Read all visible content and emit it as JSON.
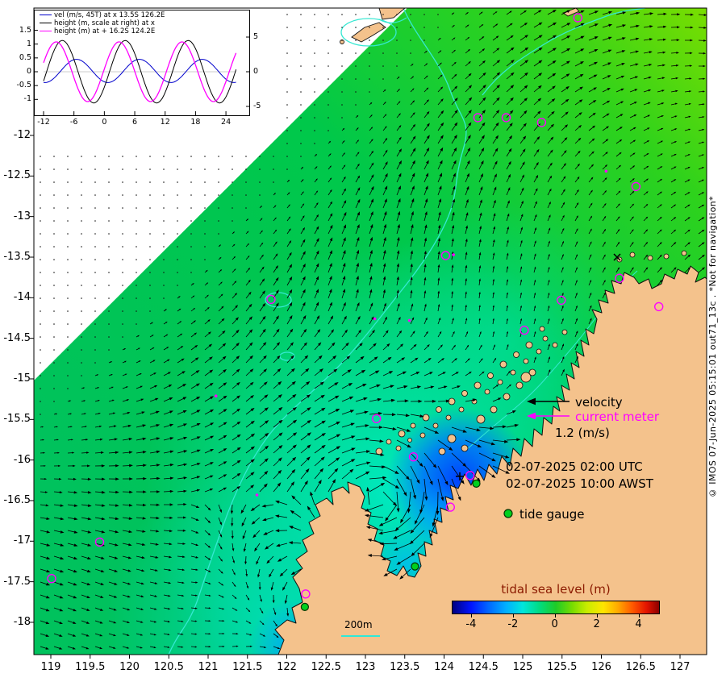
{
  "colors": {
    "land": "#f4c28c",
    "ocean_green": "#00c84a",
    "ocean_green_ne": "#7ade00",
    "shelf_cyan": "#00e6b4",
    "deep_blue": "#0040ff",
    "contour_cyan": "#35e8d2",
    "magenta": "#ff00ff",
    "tide_gauge_green": "#00d01e",
    "colorbar_title": "#8b1a00"
  },
  "map_axes": {
    "x_ticks": [
      "119",
      "119.5",
      "120",
      "120.5",
      "121",
      "121.5",
      "122",
      "122.5",
      "123",
      "123.5",
      "124",
      "124.5",
      "125",
      "125.5",
      "126",
      "126.5",
      "127"
    ],
    "y_ticks": [
      "-12",
      "-12.5",
      "-13",
      "-13.5",
      "-14",
      "-14.5",
      "-15",
      "-15.5",
      "-16",
      "-16.5",
      "-17",
      "-17.5",
      "-18"
    ]
  },
  "inset": {
    "legend": [
      {
        "label": "vel (m/s, 45T) at x 13.5S 126.2E",
        "color": "#0000cc"
      },
      {
        "label": "height (m, scale at right) at x",
        "color": "#000000"
      },
      {
        "label": "height (m) at + 16.2S 124.2E",
        "color": "#ff00ff"
      }
    ],
    "x_ticks": [
      "-12",
      "-6",
      "0",
      "6",
      "12",
      "18",
      "24"
    ],
    "y_left_ticks": [
      "1.5",
      "1",
      "0.5",
      "0",
      "-0.5",
      "-1"
    ],
    "y_right_ticks": [
      "5",
      "0",
      "-5"
    ]
  },
  "legend": {
    "velocity": "velocity",
    "current_meter": "current meter",
    "speed_scale": "1.2 (m/s)",
    "time_utc": "02-07-2025 02:00 UTC",
    "time_awst": "02-07-2025 10:00 AWST",
    "tide_gauge": "tide gauge",
    "depth_contour": "200m"
  },
  "colorbar": {
    "title": "tidal sea level (m)",
    "ticks": [
      "-4",
      "-2",
      "0",
      "2",
      "4"
    ]
  },
  "watermark": "© IMOS 07-Jun-2025 05:15:01 out71_13c . *Not for navigation*",
  "chart_data": {
    "type": "map",
    "x_axis": {
      "label": "",
      "range": [
        118.78,
        127.33
      ],
      "ticks": [
        119,
        119.5,
        120,
        120.5,
        121,
        121.5,
        122,
        122.5,
        123,
        123.5,
        124,
        124.5,
        125,
        125.5,
        126,
        126.5,
        127
      ]
    },
    "y_axis": {
      "label": "",
      "range": [
        -18.4,
        -10.43
      ],
      "ticks": [
        -12,
        -12.5,
        -13,
        -13.5,
        -14,
        -14.5,
        -15,
        -15.5,
        -16,
        -16.5,
        -17,
        -17.5,
        -18
      ]
    },
    "colorbar": {
      "label": "tidal sea level (m)",
      "range": [
        -4.92,
        5.02
      ],
      "ticks": [
        -4,
        -2,
        0,
        2,
        4
      ],
      "palette": "jet"
    },
    "reference_vector_speed_mps": 1.2,
    "timestamp_utc": "02-07-2025 02:00 UTC",
    "timestamp_local": "02-07-2025 10:00 AWST",
    "depth_contour_m": 200,
    "inset_timeseries": {
      "type": "line",
      "x_ticks_hours": [
        -12,
        -6,
        0,
        6,
        12,
        18,
        24
      ],
      "x_range_hours": [
        -12,
        26
      ],
      "y_left_range": [
        -1.6,
        1.85
      ],
      "y_right_range": [
        -7.5,
        8.8
      ],
      "series": [
        {
          "name": "vel (m/s, 45T) at x 13.5S 126.2E",
          "color": "#0000cc",
          "axis": "left",
          "amplitude": 0.42,
          "period_h": 12.42,
          "phase_h": 5.5,
          "offset": 0.03
        },
        {
          "name": "height (m, scale at right) at x",
          "color": "#000000",
          "axis": "right",
          "amplitude": 4.5,
          "period_h": 12.42,
          "phase_h": 8.3,
          "offset": 0
        },
        {
          "name": "height (m) at + 16.2S 124.2E",
          "color": "#ff00ff",
          "axis": "left",
          "amplitude": 1.08,
          "period_h": 12.42,
          "phase_h": 9.5,
          "offset": 0
        }
      ]
    },
    "markers": {
      "current_meters_open": [
        [
          119.01,
          -17.46
        ],
        [
          119.62,
          -17.01
        ],
        [
          122.24,
          -17.65
        ],
        [
          121.8,
          -14.02
        ],
        [
          123.14,
          -15.49
        ],
        [
          124.02,
          -13.48
        ],
        [
          124.43,
          -11.78
        ],
        [
          124.79,
          -11.78
        ],
        [
          125.24,
          -11.84
        ],
        [
          125.7,
          -10.55
        ],
        [
          126.44,
          -12.63
        ],
        [
          126.23,
          -13.76
        ],
        [
          126.73,
          -14.11
        ],
        [
          125.49,
          -14.03
        ],
        [
          125.02,
          -14.4
        ],
        [
          123.61,
          -15.96
        ],
        [
          124.33,
          -16.19
        ],
        [
          124.08,
          -16.58
        ]
      ],
      "current_meters_filled": [
        [
          123.12,
          -14.26
        ],
        [
          123.56,
          -14.28
        ],
        [
          121.62,
          -16.43
        ],
        [
          121.1,
          -15.21
        ],
        [
          124.12,
          -13.47
        ],
        [
          126.06,
          -12.44
        ]
      ],
      "tide_gauges": [
        [
          122.23,
          -17.81
        ],
        [
          123.63,
          -17.31
        ],
        [
          124.41,
          -16.29
        ]
      ],
      "velocity_point_x": [
        126.2,
        -13.5
      ],
      "height_point_plus": [
        124.2,
        -16.2
      ]
    }
  }
}
